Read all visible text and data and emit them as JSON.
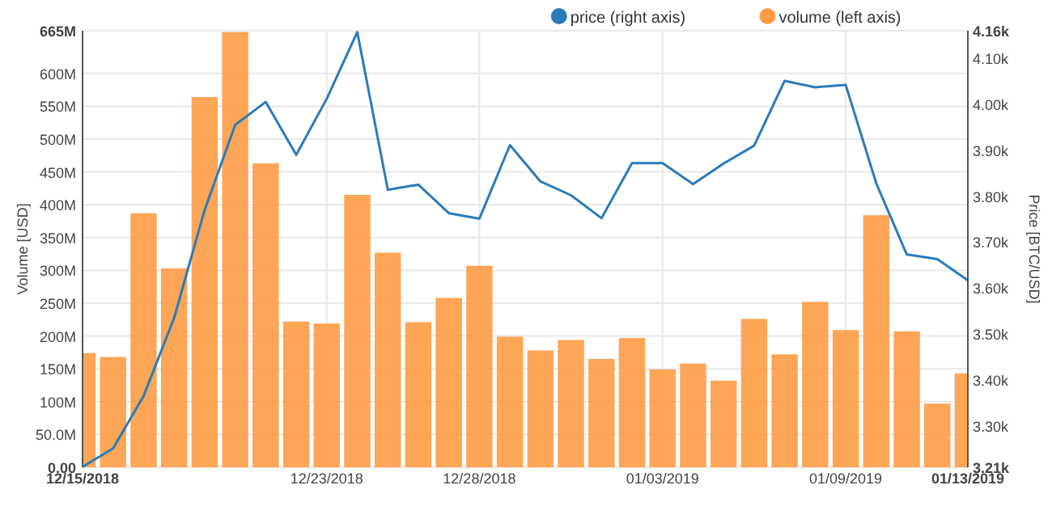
{
  "chart_data": {
    "type": "bar",
    "ylabel": "Volume [USD]",
    "y2label": "Price [BTC/USD]",
    "x": [
      "2018-12-15",
      "2018-12-16",
      "2018-12-17",
      "2018-12-18",
      "2018-12-19",
      "2018-12-20",
      "2018-12-21",
      "2018-12-22",
      "2018-12-23",
      "2018-12-24",
      "2018-12-25",
      "2018-12-26",
      "2018-12-27",
      "2018-12-28",
      "2018-12-29",
      "2018-12-30",
      "2018-12-31",
      "2019-01-01",
      "2019-01-02",
      "2019-01-03",
      "2019-01-04",
      "2019-01-05",
      "2019-01-06",
      "2019-01-07",
      "2019-01-08",
      "2019-01-09",
      "2019-01-10",
      "2019-01-11",
      "2019-01-12",
      "2019-01-13"
    ],
    "series": [
      {
        "name": "price (right axis)",
        "type": "line",
        "axis": "y2",
        "color": "#2b7bba",
        "values": [
          3211,
          3251,
          3365,
          3535,
          3770,
          3955,
          4005,
          3890,
          4012,
          4157,
          3814,
          3825,
          3763,
          3751,
          3911,
          3832,
          3802,
          3752,
          3872,
          3872,
          3826,
          3871,
          3910,
          4051,
          4037,
          4042,
          3828,
          3673,
          3663,
          3617
        ]
      },
      {
        "name": "volume (left axis)",
        "color": "#fd9c45",
        "values": [
          174000000,
          168000000,
          387000000,
          303000000,
          564000000,
          663000000,
          463000000,
          222000000,
          219000000,
          415000000,
          327000000,
          221000000,
          258000000,
          307000000,
          199000000,
          178000000,
          194000000,
          165000000,
          197000000,
          149000000,
          158000000,
          132000000,
          226000000,
          172000000,
          252000000,
          209000000,
          384000000,
          207000000,
          97000000,
          143000000
        ]
      }
    ],
    "xlim": [
      "2018-12-15",
      "2019-01-13"
    ],
    "xticks": [
      {
        "value": "2018-12-15",
        "label": "12/15/2018"
      },
      {
        "value": "2018-12-23",
        "label": "12/23/2018"
      },
      {
        "value": "2018-12-28",
        "label": "12/28/2018"
      },
      {
        "value": "2019-01-03",
        "label": "01/03/2019"
      },
      {
        "value": "2019-01-09",
        "label": "01/09/2019"
      },
      {
        "value": "2019-01-13",
        "label": "01/13/2019"
      }
    ],
    "ylim": [
      0,
      665000000
    ],
    "yticks": [
      {
        "value": 0,
        "label": "0.00"
      },
      {
        "value": 50000000,
        "label": "50.0M"
      },
      {
        "value": 100000000,
        "label": "100M"
      },
      {
        "value": 150000000,
        "label": "150M"
      },
      {
        "value": 200000000,
        "label": "200M"
      },
      {
        "value": 250000000,
        "label": "250M"
      },
      {
        "value": 300000000,
        "label": "300M"
      },
      {
        "value": 350000000,
        "label": "350M"
      },
      {
        "value": 400000000,
        "label": "400M"
      },
      {
        "value": 450000000,
        "label": "450M"
      },
      {
        "value": 500000000,
        "label": "500M"
      },
      {
        "value": 550000000,
        "label": "550M"
      },
      {
        "value": 600000000,
        "label": "600M"
      },
      {
        "value": 665000000,
        "label": "665M"
      }
    ],
    "y2lim": [
      3210,
      4160
    ],
    "y2ticks": [
      {
        "value": 3210,
        "label": "3.21k"
      },
      {
        "value": 3300,
        "label": "3.30k"
      },
      {
        "value": 3400,
        "label": "3.40k"
      },
      {
        "value": 3500,
        "label": "3.50k"
      },
      {
        "value": 3600,
        "label": "3.60k"
      },
      {
        "value": 3700,
        "label": "3.70k"
      },
      {
        "value": 3800,
        "label": "3.80k"
      },
      {
        "value": 3900,
        "label": "3.90k"
      },
      {
        "value": 4000,
        "label": "4.00k"
      },
      {
        "value": 4100,
        "label": "4.10k"
      },
      {
        "value": 4160,
        "label": "4.16k"
      }
    ],
    "grid": true,
    "legend": "top right",
    "marker": "none",
    "line_style": "solid"
  }
}
